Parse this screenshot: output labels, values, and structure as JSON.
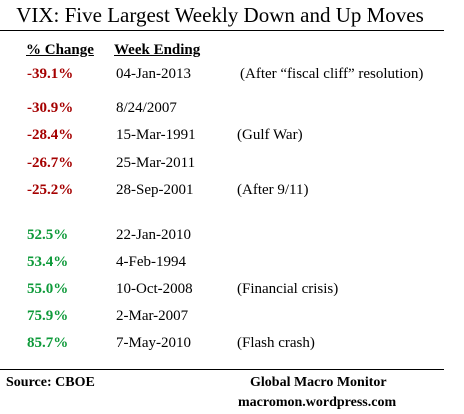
{
  "title": "VIX: Five Largest Weekly Down and Up Moves",
  "headers": {
    "change": "% Change",
    "week": "Week Ending"
  },
  "colors": {
    "down": "#a50000",
    "up": "#0e9a3a",
    "text": "#000000"
  },
  "down_moves": [
    {
      "change": "-39.1%",
      "week": "04-Jan-2013",
      "note": "(After “fiscal cliff” resolution)"
    },
    {
      "change": "-30.9%",
      "week": "8/24/2007",
      "note": ""
    },
    {
      "change": "-28.4%",
      "week": "15-Mar-1991",
      "note": "(Gulf War)"
    },
    {
      "change": "-26.7%",
      "week": "25-Mar-2011",
      "note": ""
    },
    {
      "change": "-25.2%",
      "week": "28-Sep-2001",
      "note": "(After 9/11)"
    }
  ],
  "up_moves": [
    {
      "change": "52.5%",
      "week": "22-Jan-2010",
      "note": ""
    },
    {
      "change": "53.4%",
      "week": "4-Feb-1994",
      "note": ""
    },
    {
      "change": "55.0%",
      "week": "10-Oct-2008",
      "note": "(Financial crisis)"
    },
    {
      "change": "75.9%",
      "week": "2-Mar-2007",
      "note": ""
    },
    {
      "change": "85.7%",
      "week": "7-May-2010",
      "note": "(Flash crash)"
    }
  ],
  "footer": {
    "source": "Source:  CBOE",
    "brand": "Global Macro Monitor",
    "url": "macromon.wordpress.com"
  }
}
